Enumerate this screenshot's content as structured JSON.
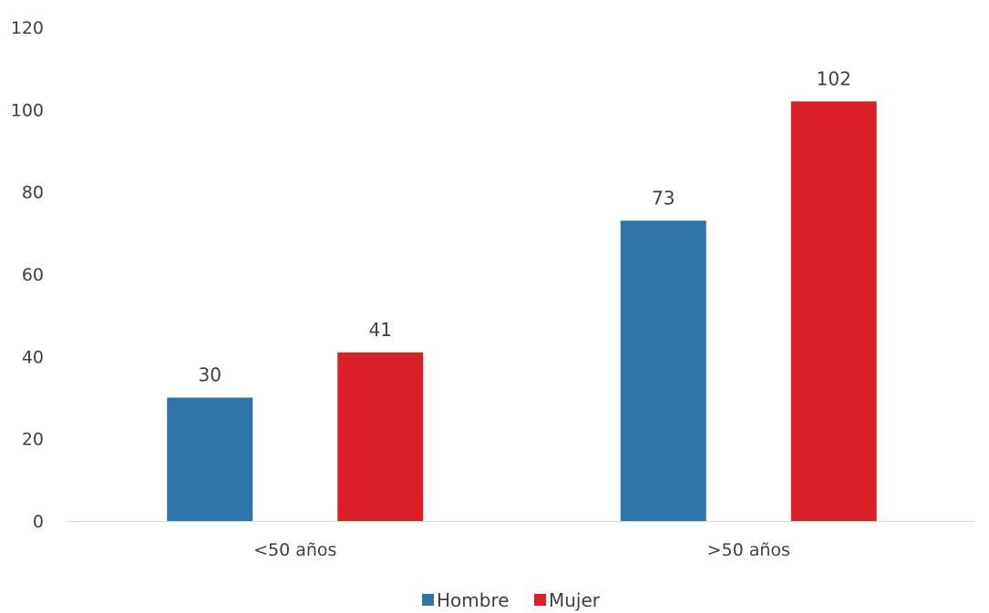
{
  "chart_data": {
    "type": "bar",
    "categories": [
      "<50 años",
      ">50 años"
    ],
    "series": [
      {
        "name": "Hombre",
        "values": [
          30,
          73
        ],
        "color": "#2E74A8"
      },
      {
        "name": "Mujer",
        "values": [
          41,
          102
        ],
        "color": "#DA1F27"
      }
    ],
    "ylim": [
      0,
      120
    ],
    "yticks": [
      0,
      20,
      40,
      60,
      80,
      100,
      120
    ],
    "data_labels": true,
    "grid": false,
    "legend_position": "bottom",
    "axis_line_color": "#d9d9d9"
  }
}
